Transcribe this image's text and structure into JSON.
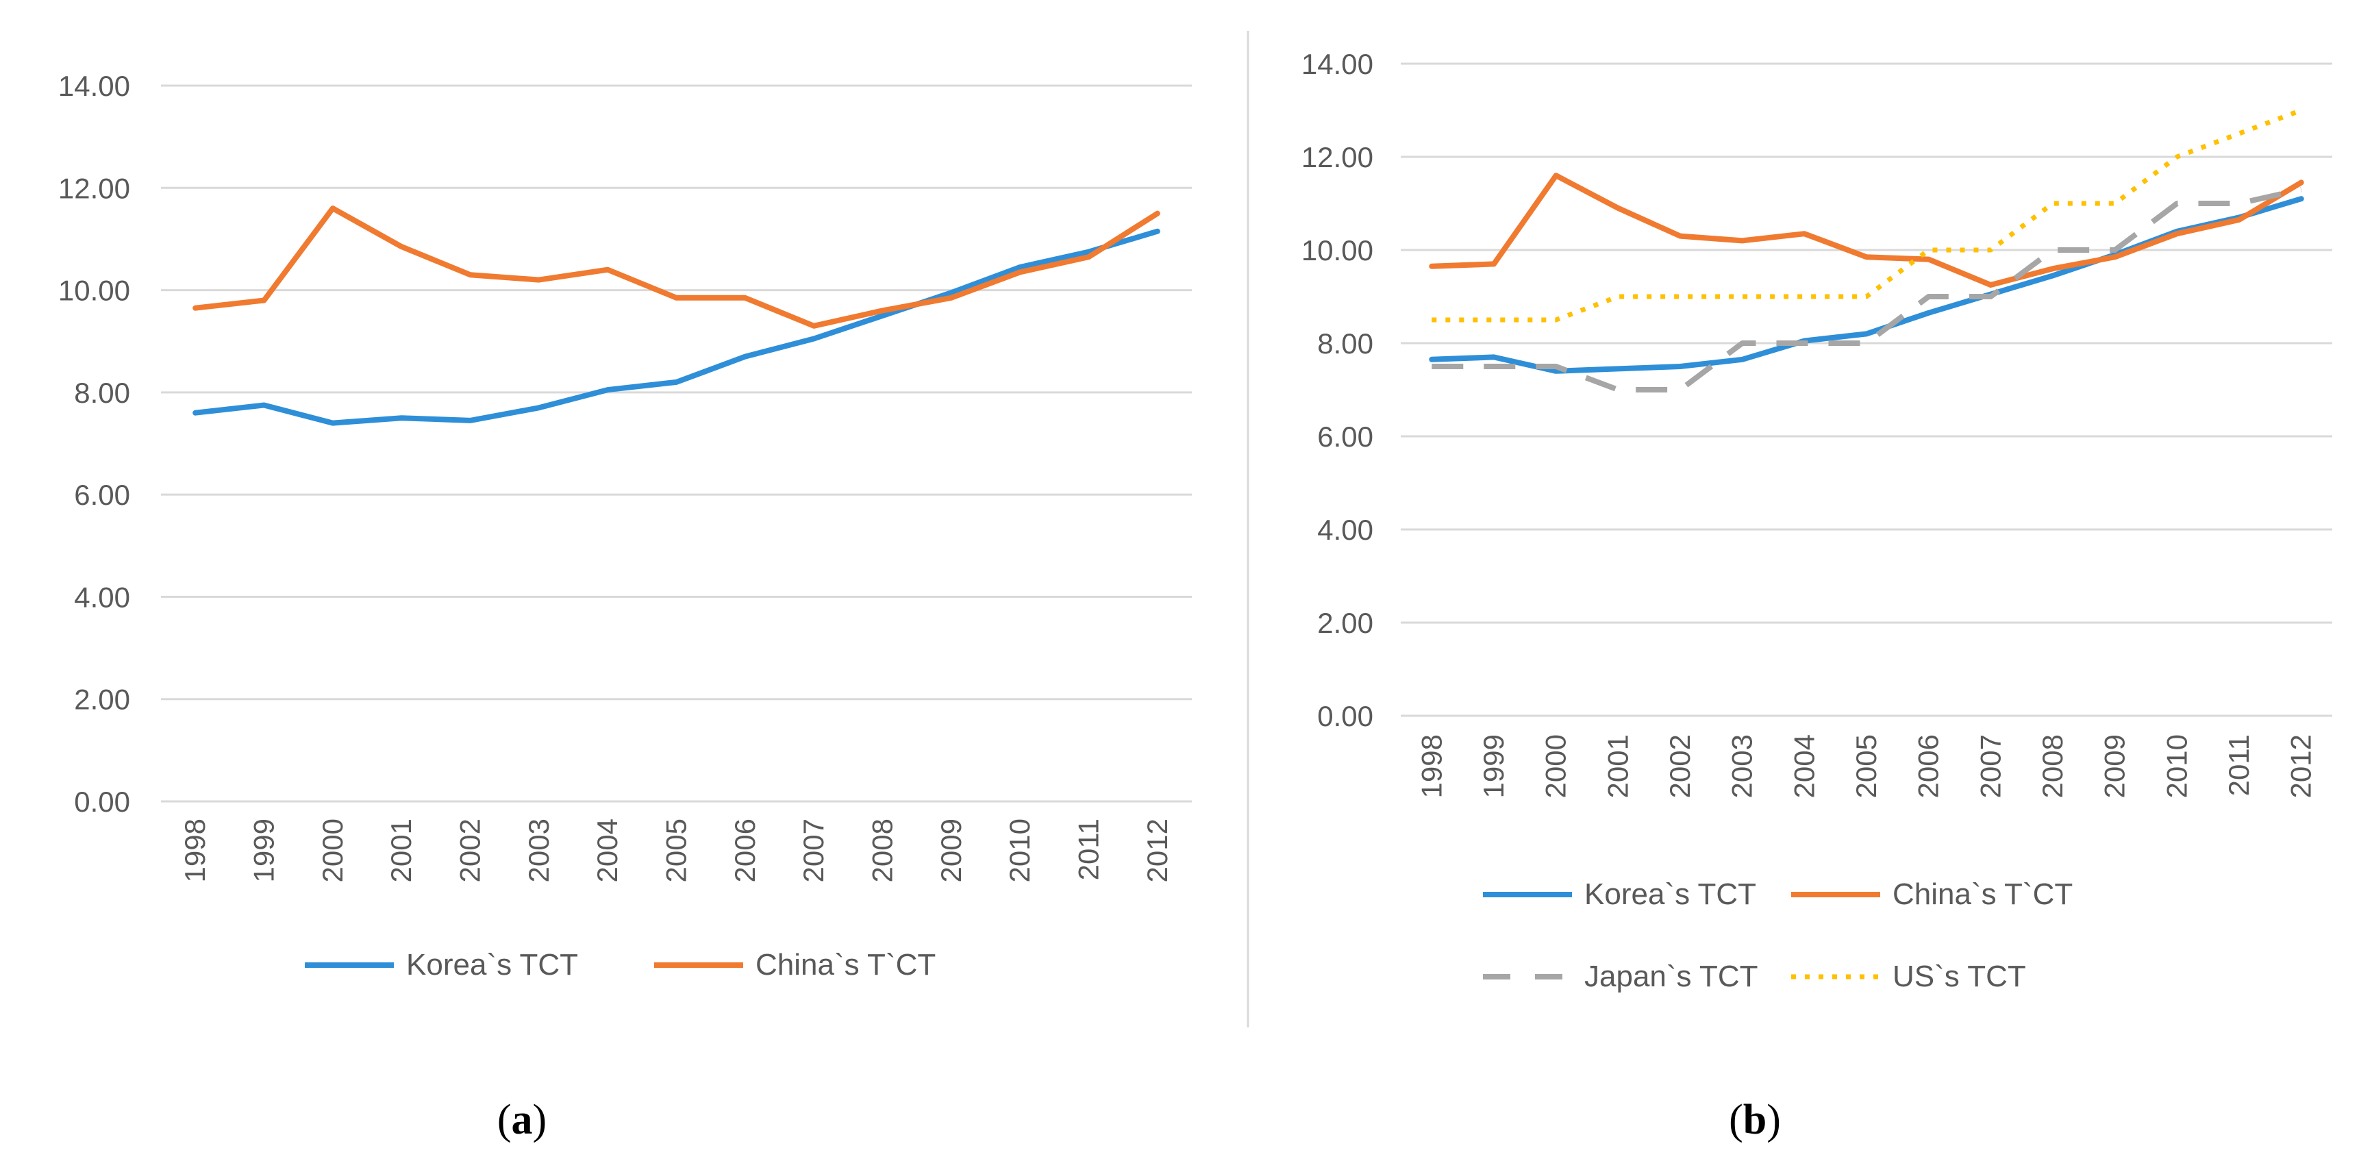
{
  "chart_data": [
    {
      "type": "line",
      "panel": "a",
      "caption_open": "(",
      "caption_letter": "a",
      "caption_close": ")",
      "categories": [
        "1998",
        "1999",
        "2000",
        "2001",
        "2002",
        "2003",
        "2004",
        "2005",
        "2006",
        "2007",
        "2008",
        "2009",
        "2010",
        "2011",
        "2012"
      ],
      "ylim": [
        0,
        14
      ],
      "yticks": [
        "0.00",
        "2.00",
        "4.00",
        "6.00",
        "8.00",
        "10.00",
        "12.00",
        "14.00"
      ],
      "grid": true,
      "legend_position": "bottom",
      "series": [
        {
          "name": "Korea`s TCT",
          "color": "#2E8FD8",
          "style": "solid",
          "values": [
            7.6,
            7.75,
            7.4,
            7.5,
            7.45,
            7.7,
            8.05,
            8.2,
            8.7,
            9.05,
            9.5,
            9.95,
            10.45,
            10.75,
            11.15
          ]
        },
        {
          "name": "China`s T`CT",
          "color": "#F07A30",
          "style": "solid",
          "values": [
            9.65,
            9.8,
            11.6,
            10.85,
            10.3,
            10.2,
            10.4,
            9.85,
            9.85,
            9.3,
            9.6,
            9.85,
            10.35,
            10.65,
            11.5
          ]
        }
      ]
    },
    {
      "type": "line",
      "panel": "b",
      "caption_open": "(",
      "caption_letter": "b",
      "caption_close": ")",
      "categories": [
        "1998",
        "1999",
        "2000",
        "2001",
        "2002",
        "2003",
        "2004",
        "2005",
        "2006",
        "2007",
        "2008",
        "2009",
        "2010",
        "2011",
        "2012"
      ],
      "ylim": [
        0,
        14
      ],
      "yticks": [
        "0.00",
        "2.00",
        "4.00",
        "6.00",
        "8.00",
        "10.00",
        "12.00",
        "14.00"
      ],
      "grid": true,
      "legend_position": "bottom",
      "series": [
        {
          "name": "Korea`s TCT",
          "color": "#2E8FD8",
          "style": "solid",
          "values": [
            7.65,
            7.7,
            7.4,
            7.45,
            7.5,
            7.65,
            8.05,
            8.2,
            8.65,
            9.05,
            9.45,
            9.9,
            10.4,
            10.7,
            11.1
          ]
        },
        {
          "name": "China`s T`CT",
          "color": "#F07A30",
          "style": "solid",
          "values": [
            9.65,
            9.7,
            11.6,
            10.9,
            10.3,
            10.2,
            10.35,
            9.85,
            9.8,
            9.25,
            9.6,
            9.85,
            10.35,
            10.65,
            11.45
          ]
        },
        {
          "name": "Japan`s TCT",
          "color": "#A6A6A6",
          "style": "dash",
          "values": [
            7.5,
            7.5,
            7.5,
            7.0,
            7.0,
            8.0,
            8.0,
            8.0,
            9.0,
            9.0,
            10.0,
            10.0,
            11.0,
            11.0,
            11.3
          ]
        },
        {
          "name": "US`s TCT",
          "color": "#FFC000",
          "style": "dot",
          "values": [
            8.5,
            8.5,
            8.5,
            9.0,
            9.0,
            9.0,
            9.0,
            9.0,
            10.0,
            10.0,
            11.0,
            11.0,
            12.0,
            12.5,
            13.0
          ]
        }
      ]
    }
  ]
}
